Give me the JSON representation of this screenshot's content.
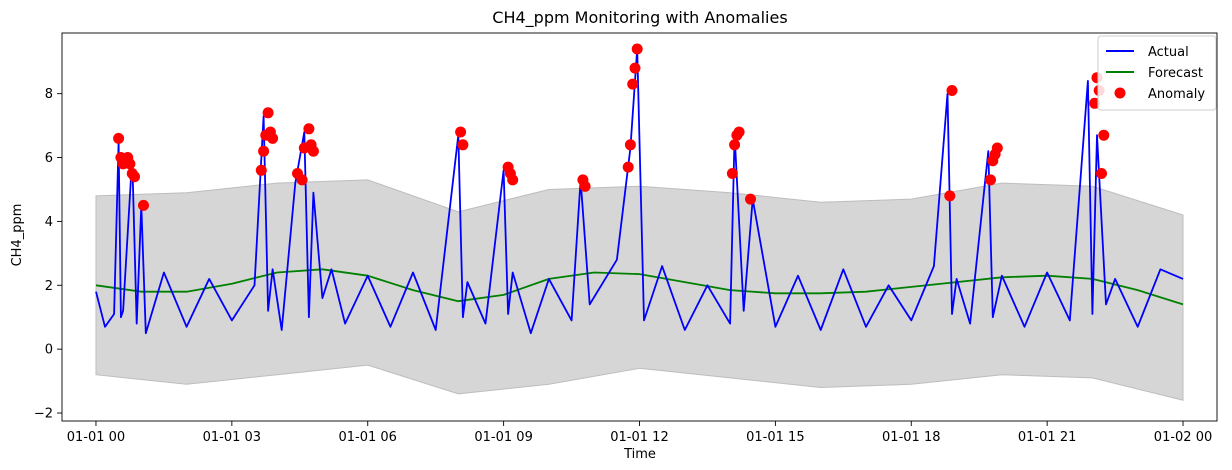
{
  "colors": {
    "actual": "#0000ff",
    "forecast": "#008000",
    "anomaly": "#ff0000",
    "band_fill": "#d6d6d6",
    "band_edge": "#bdbdbd"
  },
  "chart_data": {
    "type": "line",
    "title": "CH4_ppm Monitoring with Anomalies",
    "xlabel": "Time",
    "ylabel": "CH4_ppm",
    "xlim": [
      -0.75,
      24.75
    ],
    "ylim": [
      -2.25,
      9.9
    ],
    "x_unit": "hours since 01-01 00:00",
    "x_tick_values": [
      0,
      3,
      6,
      9,
      12,
      15,
      18,
      21,
      24
    ],
    "x_tick_labels": [
      "01-01 00",
      "01-01 03",
      "01-01 06",
      "01-01 09",
      "01-01 12",
      "01-01 15",
      "01-01 18",
      "01-01 21",
      "01-02 00"
    ],
    "y_ticks": [
      -2,
      0,
      2,
      4,
      6,
      8
    ],
    "grid": false,
    "legend": {
      "position": "top-right",
      "entries": [
        {
          "label": "Actual",
          "kind": "line",
          "color": "#0000ff"
        },
        {
          "label": "Forecast",
          "kind": "line",
          "color": "#008000"
        },
        {
          "label": "Anomaly",
          "kind": "marker",
          "color": "#ff0000"
        }
      ]
    },
    "series": [
      {
        "name": "Forecast",
        "color": "#008000",
        "x": [
          0,
          1,
          2,
          3,
          4,
          5,
          6,
          7,
          8,
          9,
          10,
          11,
          12,
          13,
          14,
          15,
          16,
          17,
          18,
          19,
          20,
          21,
          22,
          23,
          24
        ],
        "values": [
          2.0,
          1.8,
          1.8,
          2.05,
          2.4,
          2.5,
          2.3,
          1.85,
          1.5,
          1.7,
          2.2,
          2.4,
          2.35,
          2.1,
          1.85,
          1.75,
          1.75,
          1.8,
          1.95,
          2.1,
          2.25,
          2.3,
          2.2,
          1.85,
          1.4
        ]
      },
      {
        "name": "Actual",
        "color": "#0000ff",
        "x": [
          0,
          0.2,
          0.4,
          0.5,
          0.55,
          0.6,
          0.8,
          0.9,
          1.0,
          1.1,
          1.5,
          2.0,
          2.5,
          3.0,
          3.5,
          3.7,
          3.8,
          3.9,
          4.1,
          4.4,
          4.6,
          4.7,
          4.8,
          5.0,
          5.2,
          5.5,
          6.0,
          6.5,
          7.0,
          7.5,
          8.0,
          8.1,
          8.2,
          8.6,
          9.0,
          9.1,
          9.2,
          9.6,
          10.0,
          10.5,
          10.7,
          10.9,
          11.5,
          11.8,
          11.95,
          12.1,
          12.5,
          13.0,
          13.5,
          14.0,
          14.1,
          14.3,
          14.5,
          15.0,
          15.5,
          16.0,
          16.5,
          17.0,
          17.5,
          18.0,
          18.5,
          18.8,
          18.9,
          19.0,
          19.3,
          19.7,
          19.8,
          20.0,
          20.5,
          21.0,
          21.5,
          21.9,
          22.0,
          22.1,
          22.3,
          22.5,
          23.0,
          23.5,
          24.0
        ],
        "values": [
          1.8,
          0.7,
          1.1,
          6.5,
          1.0,
          1.2,
          6.0,
          0.8,
          4.5,
          0.5,
          2.4,
          0.7,
          2.2,
          0.9,
          2.0,
          7.3,
          1.2,
          2.5,
          0.6,
          5.2,
          6.8,
          1.0,
          4.9,
          1.6,
          2.5,
          0.8,
          2.3,
          0.7,
          2.4,
          0.6,
          6.7,
          1.0,
          2.1,
          0.8,
          5.6,
          1.1,
          2.4,
          0.5,
          2.2,
          0.9,
          5.3,
          1.4,
          2.8,
          6.3,
          9.4,
          0.9,
          2.6,
          0.6,
          2.0,
          0.8,
          6.7,
          1.2,
          4.7,
          0.7,
          2.3,
          0.6,
          2.5,
          0.7,
          2.0,
          0.9,
          2.6,
          8.0,
          1.1,
          2.2,
          0.8,
          6.2,
          1.0,
          2.3,
          0.7,
          2.4,
          0.9,
          8.4,
          1.1,
          6.7,
          1.4,
          2.2,
          0.7,
          2.5,
          2.2
        ]
      }
    ],
    "band": {
      "x": [
        0,
        2,
        4,
        6,
        8,
        10,
        12,
        14,
        16,
        18,
        20,
        22,
        24
      ],
      "upper": [
        4.8,
        4.9,
        5.2,
        5.3,
        4.3,
        5.0,
        5.1,
        4.9,
        4.6,
        4.7,
        5.2,
        5.1,
        4.2
      ],
      "lower": [
        -0.8,
        -1.1,
        -0.8,
        -0.5,
        -1.4,
        -1.1,
        -0.6,
        -0.9,
        -1.2,
        -1.1,
        -0.8,
        -0.9,
        -1.6
      ]
    },
    "anomalies": {
      "name": "Anomaly",
      "color": "#ff0000",
      "x": [
        0.5,
        0.55,
        0.6,
        0.7,
        0.75,
        0.8,
        0.85,
        1.05,
        3.65,
        3.7,
        3.75,
        3.8,
        3.85,
        3.9,
        4.45,
        4.55,
        4.6,
        4.7,
        4.75,
        4.8,
        8.05,
        8.1,
        9.1,
        9.15,
        9.2,
        10.75,
        10.8,
        11.75,
        11.8,
        11.85,
        11.9,
        11.95,
        14.05,
        14.1,
        14.15,
        14.2,
        14.45,
        18.85,
        18.9,
        19.75,
        19.8,
        19.85,
        19.9,
        22.05,
        22.1,
        22.15,
        22.2,
        22.25
      ],
      "values": [
        6.6,
        6.0,
        5.8,
        6.0,
        5.8,
        5.5,
        5.4,
        4.5,
        5.6,
        6.2,
        6.7,
        7.4,
        6.8,
        6.6,
        5.5,
        5.3,
        6.3,
        6.9,
        6.4,
        6.2,
        6.8,
        6.4,
        5.7,
        5.5,
        5.3,
        5.3,
        5.1,
        5.7,
        6.4,
        8.3,
        8.8,
        9.4,
        5.5,
        6.4,
        6.7,
        6.8,
        4.7,
        4.8,
        8.1,
        5.3,
        5.9,
        6.1,
        6.3,
        7.7,
        8.5,
        8.1,
        5.5,
        6.7
      ]
    }
  }
}
